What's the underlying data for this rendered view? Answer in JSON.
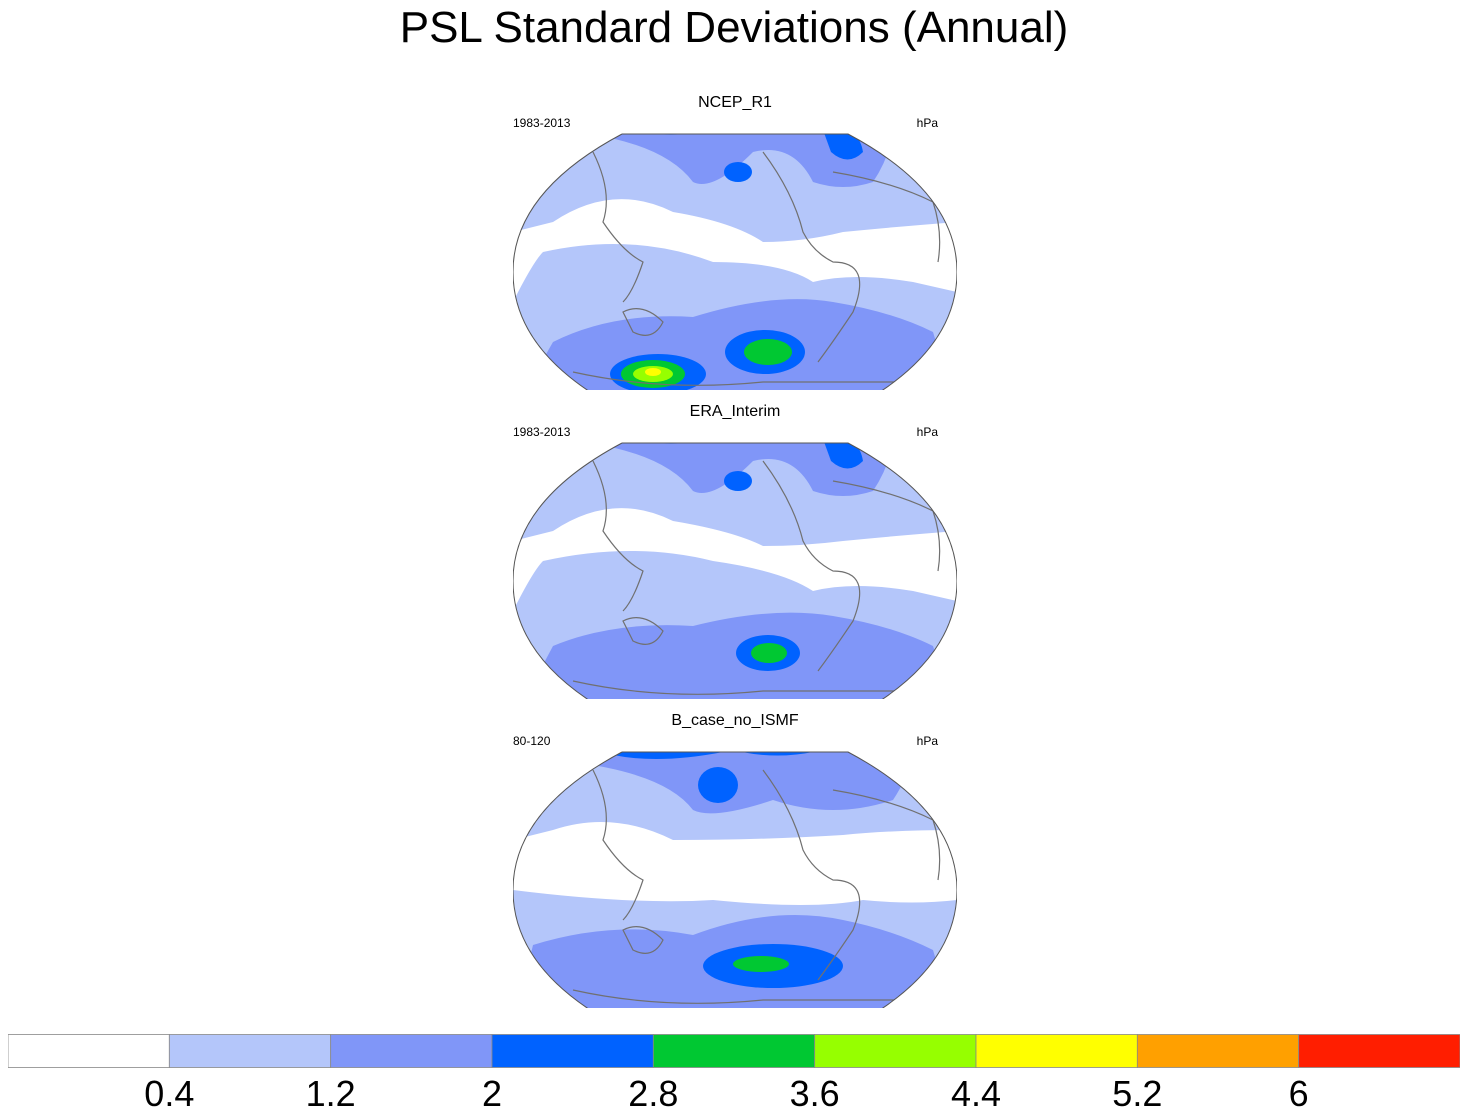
{
  "title": "PSL Standard Deviations (Annual)",
  "colors": {
    "levels": [
      "#ffffff",
      "#b4c6fa",
      "#8096f8",
      "#0062ff",
      "#00c832",
      "#96ff00",
      "#ffff00",
      "#ffa000",
      "#ff1e00"
    ],
    "coastline": "#707070",
    "border": "#555555"
  },
  "panels": [
    {
      "title": "NCEP_R1",
      "left_label": "1983-2013",
      "right_label": "hPa"
    },
    {
      "title": "ERA_Interim",
      "left_label": "1983-2013",
      "right_label": "hPa"
    },
    {
      "title": "B_case_no_ISMF",
      "left_label": "80-120",
      "right_label": "hPa"
    }
  ],
  "colorbar": {
    "labels": [
      "0.4",
      "1.2",
      "2",
      "2.8",
      "3.6",
      "4.4",
      "5.2",
      "6"
    ]
  }
}
